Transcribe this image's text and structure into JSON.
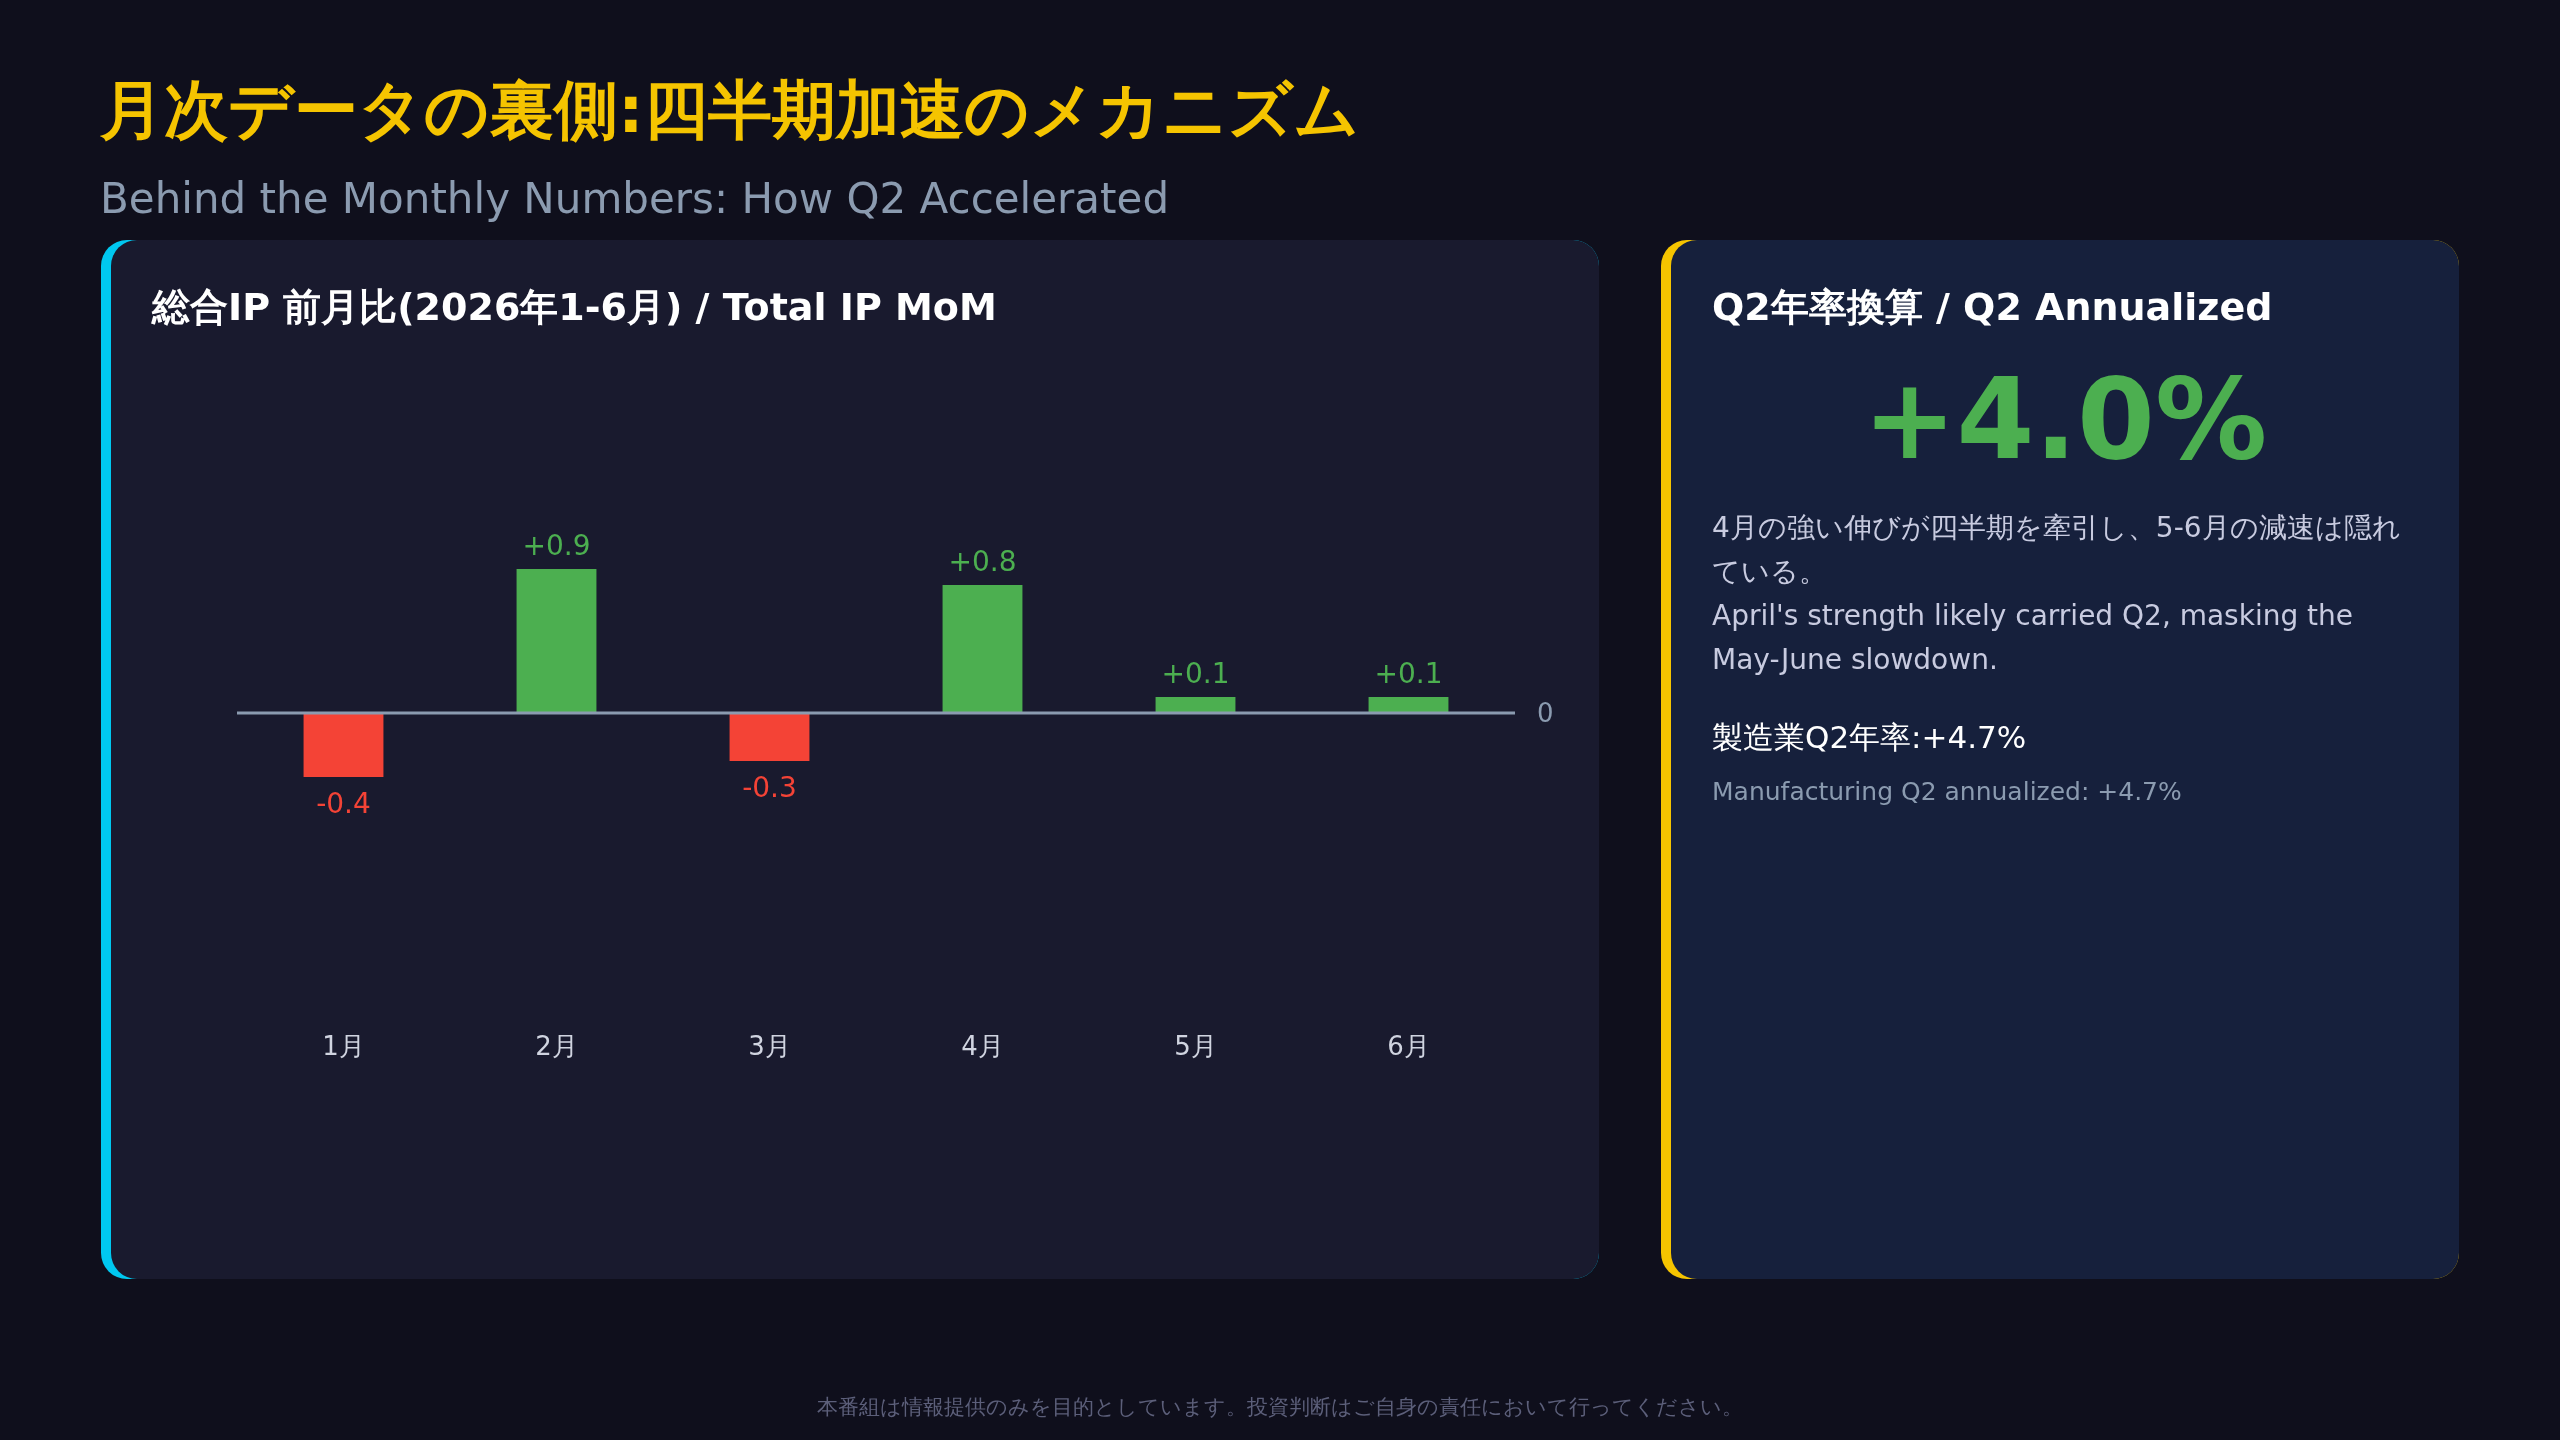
{
  "chart_data": [
    {
      "type": "other",
      "title": "月次データの裏側:四半期加速のメカニズム",
      "subtitle": "Behind the Monthly Numbers: How Q2 Accelerated",
      "annotations": [
        "本番組は情報提供のみを目的としています。投資判断はご自身の責任において行ってください。"
      ]
    },
    {
      "type": "bar",
      "title": "総合IP 前月比(2026年1-6月) / Total IP MoM",
      "categories": [
        "1月",
        "2月",
        "3月",
        "4月",
        "5月",
        "6月"
      ],
      "values": [
        -0.4,
        0.9,
        -0.3,
        0.8,
        0.1,
        0.1
      ],
      "colors": [
        "#f44336",
        "#4caf50",
        "#f44336",
        "#4caf50",
        "#4caf50",
        "#4caf50"
      ],
      "value_labels": [
        "-0.4",
        "+0.9",
        "-0.3",
        "+0.8",
        "+0.1",
        "+0.1"
      ],
      "annotations": [
        "0"
      ]
    },
    {
      "type": "other",
      "title": "Q2年率換算 / Q2 Annualized",
      "annotations": [
        "+4.0%",
        "4月の強い伸びが四半期を牽引し、5-6月の減速は隠れている。",
        "April's strength likely carried Q2, masking the May-June slowdown.",
        "製造業Q2年率:+4.7%",
        "Manufacturing Q2 annualized: +4.7%"
      ]
    }
  ]
}
